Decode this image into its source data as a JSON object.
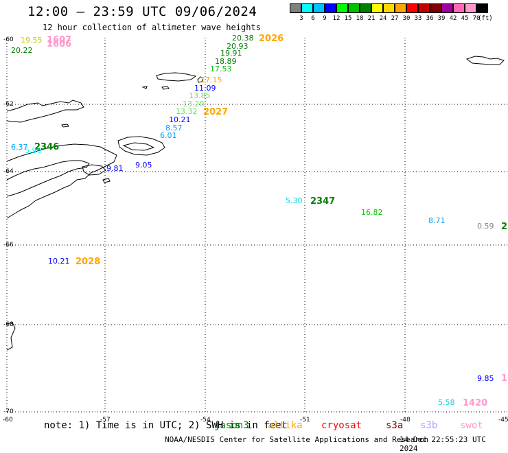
{
  "title": "12:00 – 23:59 UTC 09/06/2024",
  "subtitle": "12 hour collection of altimeter wave heights",
  "legend": {
    "colors": [
      "#808080",
      "#00ffff",
      "#00bfff",
      "#0000ff",
      "#00ff00",
      "#00c000",
      "#008000",
      "#ffff00",
      "#ffd700",
      "#ffa500",
      "#ff0000",
      "#c00000",
      "#800000",
      "#a000a0",
      "#ff69b4",
      "#ff99cc",
      "#000000"
    ],
    "labels": [
      "3",
      "6",
      "9",
      "12",
      "15",
      "18",
      "21",
      "24",
      "27",
      "30",
      "33",
      "36",
      "39",
      "42",
      "45",
      "70"
    ],
    "unit": "(ft)"
  },
  "axes": {
    "lat_labels": [
      "-60",
      "-62",
      "-64",
      "-66",
      "-68",
      "-70"
    ],
    "lon_labels": [
      "-60",
      "-57",
      "-54",
      "-51",
      "-48",
      "-45"
    ]
  },
  "swh_points": [
    {
      "text": "19.55",
      "color": "#c8c800"
    },
    {
      "text": "1607",
      "color": "#ff99cc"
    },
    {
      "text": "1606",
      "color": "#ff99cc"
    },
    {
      "text": "20.22",
      "color": "#008000"
    },
    {
      "text": "20.38",
      "color": "#008000"
    },
    {
      "text": "2026",
      "color": "#ffa500"
    },
    {
      "text": "20.93",
      "color": "#008000"
    },
    {
      "text": "19.91",
      "color": "#008000"
    },
    {
      "text": "18.89",
      "color": "#008000"
    },
    {
      "text": "17.53",
      "color": "#00c000"
    },
    {
      "text": "17.15",
      "color": "#ffa500"
    },
    {
      "text": "11.09",
      "color": "#0000ff"
    },
    {
      "text": "13.85",
      "color": "#66e066"
    },
    {
      "text": "13.20",
      "color": "#66e066"
    },
    {
      "text": "13.32",
      "color": "#66e066"
    },
    {
      "text": "2027",
      "color": "#ffa500"
    },
    {
      "text": "10.21",
      "color": "#0000ff"
    },
    {
      "text": "8.57",
      "color": "#00a0ff"
    },
    {
      "text": "6.01",
      "color": "#00a0ff"
    },
    {
      "text": "6.37",
      "color": "#00a0ff"
    },
    {
      "text": "2346",
      "color": "#008000"
    },
    {
      "text": "5.96",
      "color": "#00ffff"
    },
    {
      "text": "9.81",
      "color": "#0000ff"
    },
    {
      "text": "9.05",
      "color": "#0000ff"
    },
    {
      "text": "5.30",
      "color": "#00d0e0"
    },
    {
      "text": "2347",
      "color": "#008000"
    },
    {
      "text": "16.82",
      "color": "#00c000"
    },
    {
      "text": "8.71",
      "color": "#00a0ff"
    },
    {
      "text": "0.59",
      "color": "#808080"
    },
    {
      "text": "2",
      "color": "#008000"
    },
    {
      "text": "10.21",
      "color": "#0000ff"
    },
    {
      "text": "2028",
      "color": "#ffa500"
    },
    {
      "text": "9.85",
      "color": "#0000ff"
    },
    {
      "text": "1",
      "color": "#ff99cc"
    },
    {
      "text": "5.58",
      "color": "#00d0e0"
    },
    {
      "text": "1420",
      "color": "#ff99cc"
    }
  ],
  "footer": {
    "note": "note: 1) Time is in UTC; 2) SWH is in feet",
    "satellites": [
      {
        "name": "jason3",
        "color": "#008000"
      },
      {
        "name": "altika",
        "color": "#ffa500"
      },
      {
        "name": "cryosat",
        "color": "#ff0000"
      },
      {
        "name": "s3a",
        "color": "#800000"
      },
      {
        "name": "s3b",
        "color": "#b0a0ff"
      },
      {
        "name": "swot",
        "color": "#ff99cc"
      }
    ],
    "credit": "NOAA/NESDIS Center for Satellite Applications and Research",
    "generated": "14 Dec 22:55:23 UTC 2024"
  }
}
